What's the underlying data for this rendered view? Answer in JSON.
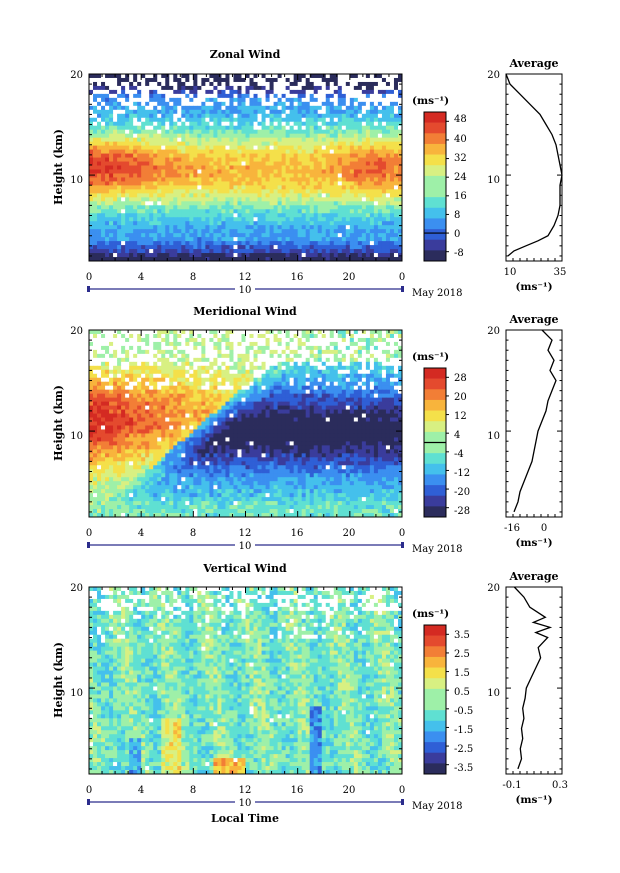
{
  "colors": {
    "scale": [
      "#2b2c5c",
      "#3a3c9c",
      "#2f5fd6",
      "#3b8ff0",
      "#44c0ec",
      "#5fe0d2",
      "#9ef0a8",
      "#d8f082",
      "#f4e04a",
      "#f8b43c",
      "#f27e36",
      "#e44a2e",
      "#d42a22"
    ],
    "gap": "#ffffff",
    "contour": "#000000"
  },
  "bottom": {
    "axis_label": "Local Time",
    "date_label": "May 2018"
  },
  "chart_data": [
    {
      "id": "zonal",
      "type": "heatmap",
      "title": "Zonal Wind",
      "ylabel": "Height (km)",
      "unit": "(ms⁻¹)",
      "x_ticks": [
        "0",
        "4",
        "8",
        "12",
        "16",
        "20",
        "0"
      ],
      "xlim": [
        0,
        24
      ],
      "ylim": [
        1.5,
        20
      ],
      "y_ticks": [
        10,
        20
      ],
      "day_label": "10",
      "date_label": "May 2018",
      "colorbar": {
        "ticks": [
          "48",
          "40",
          "32",
          "24",
          "16",
          "8",
          "0",
          "-8"
        ],
        "range": [
          -12,
          52
        ],
        "zero_line_at": 0
      },
      "profile": {
        "title": "Average",
        "xlabel": "(ms⁻¹)",
        "xlim": [
          8,
          36
        ],
        "x_ticks": [
          "10",
          "35"
        ],
        "y_ticks": [
          10,
          20
        ],
        "heights": [
          2,
          2.5,
          3,
          3.5,
          4,
          5,
          6,
          7,
          8,
          9,
          10,
          11,
          12,
          13,
          14,
          15,
          16,
          17,
          18,
          19,
          20
        ],
        "values": [
          9,
          12,
          18,
          24,
          29,
          32,
          34,
          35,
          35,
          35,
          36,
          35,
          34,
          33,
          31,
          28,
          25,
          20,
          15,
          10,
          8
        ]
      }
    },
    {
      "id": "meridional",
      "type": "heatmap",
      "title": "Meridional Wind",
      "ylabel": "Height (km)",
      "unit": "(ms⁻¹)",
      "x_ticks": [
        "0",
        "4",
        "8",
        "12",
        "16",
        "20",
        "0"
      ],
      "xlim": [
        0,
        24
      ],
      "ylim": [
        1.5,
        20
      ],
      "y_ticks": [
        10,
        20
      ],
      "day_label": "10",
      "date_label": "May 2018",
      "colorbar": {
        "ticks": [
          "28",
          "20",
          "12",
          "4",
          "-4",
          "-12",
          "-20",
          "-28"
        ],
        "range": [
          -32,
          32
        ],
        "zero_line_at": 0
      },
      "profile": {
        "title": "Average",
        "xlabel": "(ms⁻¹)",
        "xlim": [
          -20,
          8
        ],
        "x_ticks": [
          "-16",
          "0"
        ],
        "y_ticks": [
          10,
          20
        ],
        "heights": [
          2,
          2.5,
          3,
          4,
          5,
          6,
          7,
          8,
          9,
          10,
          11,
          12,
          13,
          14,
          15,
          16,
          17,
          18,
          19,
          20
        ],
        "values": [
          -16,
          -15,
          -14,
          -13,
          -11,
          -9,
          -7,
          -6,
          -5,
          -4,
          -2,
          0,
          1,
          3,
          5,
          2,
          4,
          1,
          3,
          -2
        ]
      }
    },
    {
      "id": "vertical",
      "type": "heatmap",
      "title": "Vertical Wind",
      "ylabel": "Height (km)",
      "unit": "(ms⁻¹)",
      "x_ticks": [
        "0",
        "4",
        "8",
        "12",
        "16",
        "20",
        "0"
      ],
      "xlim": [
        0,
        24
      ],
      "ylim": [
        1.5,
        20
      ],
      "y_ticks": [
        10,
        20
      ],
      "day_label": "10",
      "date_label": "May 2018",
      "colorbar": {
        "ticks": [
          "3.5",
          "2.5",
          "1.5",
          "0.5",
          "-0.5",
          "-1.5",
          "-2.5",
          "-3.5"
        ],
        "range": [
          -4,
          4
        ],
        "zero_line_at": null
      },
      "profile": {
        "title": "Average",
        "xlabel": "(ms⁻¹)",
        "xlim": [
          -0.15,
          0.32
        ],
        "x_ticks": [
          "-0.1",
          "0.3"
        ],
        "y_ticks": [
          10,
          20
        ],
        "heights": [
          2,
          3,
          4,
          5,
          6,
          7,
          8,
          9,
          10,
          11,
          12,
          13,
          14,
          15,
          15.5,
          16,
          16.5,
          17,
          18,
          19,
          20
        ],
        "values": [
          -0.05,
          -0.02,
          -0.03,
          -0.01,
          -0.02,
          0.0,
          -0.01,
          0.01,
          0.02,
          0.06,
          0.1,
          0.14,
          0.12,
          0.2,
          0.1,
          0.22,
          0.08,
          0.18,
          0.05,
          0.0,
          -0.08
        ]
      }
    }
  ]
}
